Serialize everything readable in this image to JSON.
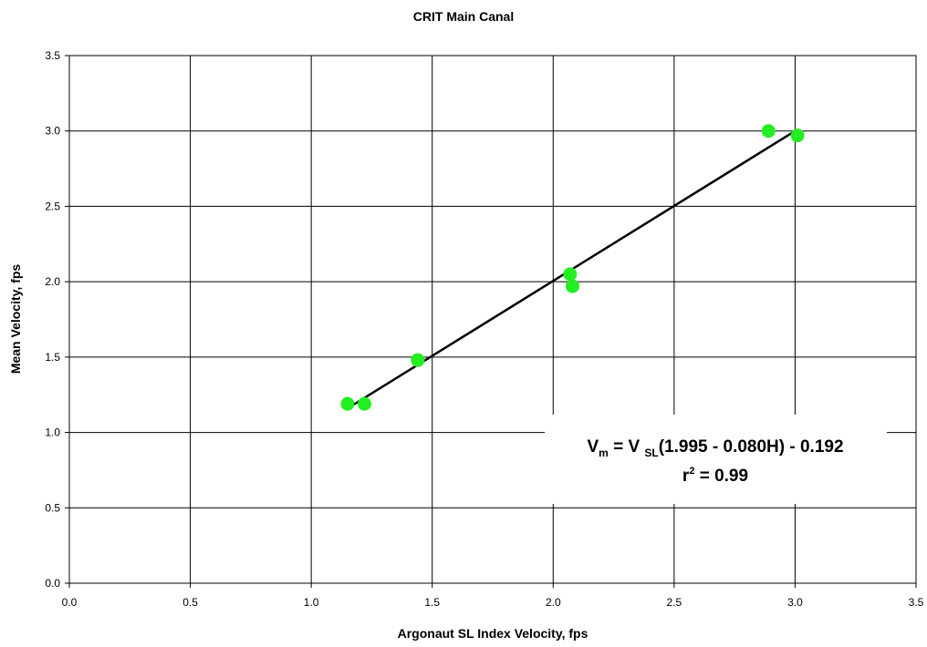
{
  "chart_data": {
    "type": "scatter",
    "title": "CRIT Main Canal",
    "xlabel": "Argonaut SL Index Velocity, fps",
    "ylabel": "Mean Velocity, fps",
    "xlim": [
      0,
      3.5
    ],
    "ylim": [
      0,
      3.5
    ],
    "x_ticks": [
      "0.0",
      "0.5",
      "1.0",
      "1.5",
      "2.0",
      "2.5",
      "3.0",
      "3.5"
    ],
    "y_ticks": [
      "0.0",
      "0.5",
      "1.0",
      "1.5",
      "2.0",
      "2.5",
      "3.0",
      "3.5"
    ],
    "grid": true,
    "series": [
      {
        "type": "scatter",
        "color": "#22ee22",
        "points": [
          {
            "x": 1.15,
            "y": 1.19
          },
          {
            "x": 1.22,
            "y": 1.19
          },
          {
            "x": 1.44,
            "y": 1.48
          },
          {
            "x": 2.07,
            "y": 2.05
          },
          {
            "x": 2.08,
            "y": 1.97
          },
          {
            "x": 2.89,
            "y": 3.0
          },
          {
            "x": 3.01,
            "y": 2.97
          }
        ]
      },
      {
        "type": "line",
        "color": "#000000",
        "points": [
          {
            "x": 1.15,
            "y": 1.16
          },
          {
            "x": 3.01,
            "y": 3.01
          }
        ]
      }
    ],
    "annotation": {
      "v": "V",
      "v_sub_m": "m",
      "eq_mid": " = V ",
      "v_sub_sl": "SL",
      "eq_tail": "(1.995 - 0.080H) - 0.192",
      "r": "r",
      "r_sup": "2",
      "r_tail": " = 0.99"
    }
  }
}
